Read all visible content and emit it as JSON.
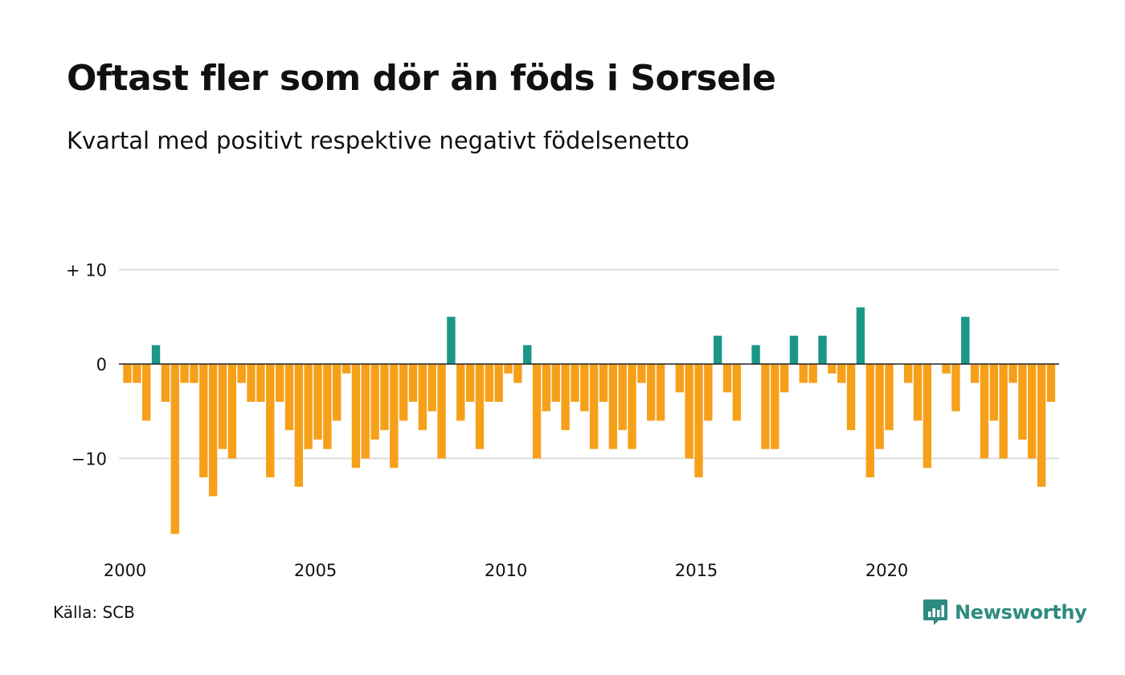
{
  "header": {
    "title": "Oftast fler som dör än föds i Sorsele",
    "subtitle": "Kvartal med positivt respektive negativt födelsenetto"
  },
  "footer": {
    "source": "Källa: SCB",
    "brand": "Newsworthy",
    "brand_icon": "chat-bar-chart-icon"
  },
  "colors": {
    "positive": "#1a9787",
    "negative": "#f6a01a",
    "grid": "#dddddd",
    "zero_line": "#222222"
  },
  "chart_data": {
    "type": "bar",
    "title": "Oftast fler som dör än föds i Sorsele",
    "subtitle": "Kvartal med positivt respektive negativt födelsenetto",
    "xlabel": "",
    "ylabel": "",
    "grid": true,
    "ylim": [
      -18,
      10
    ],
    "y_ticks": [
      {
        "value": 10,
        "label": "+ 10"
      },
      {
        "value": 0,
        "label": "0"
      },
      {
        "value": -10,
        "label": "−10"
      }
    ],
    "x_ticks": [
      "2000",
      "2005",
      "2010",
      "2015",
      "2020"
    ],
    "start_year": 2000,
    "values": [
      -2,
      -2,
      -6,
      2,
      -4,
      -18,
      -2,
      -2,
      -12,
      -14,
      -9,
      -10,
      -2,
      -4,
      -4,
      -12,
      -4,
      -7,
      -13,
      -9,
      -8,
      -9,
      -6,
      -1,
      -11,
      -10,
      -8,
      -7,
      -11,
      -6,
      -4,
      -7,
      -5,
      -10,
      5,
      -6,
      -4,
      -9,
      -4,
      -4,
      -1,
      -2,
      2,
      -10,
      -5,
      -4,
      -7,
      -4,
      -5,
      -9,
      -4,
      -9,
      -7,
      -9,
      -2,
      -6,
      -6,
      0,
      -3,
      -10,
      -12,
      -6,
      3,
      -3,
      -6,
      0,
      2,
      -9,
      -9,
      -3,
      3,
      -2,
      -2,
      3,
      -1,
      -2,
      -7,
      6,
      -12,
      -9,
      -7,
      0,
      -2,
      -6,
      -11,
      0,
      -1,
      -5,
      5,
      -2,
      -10,
      -6,
      -10,
      -2,
      -8,
      -10,
      -13,
      -4
    ]
  }
}
